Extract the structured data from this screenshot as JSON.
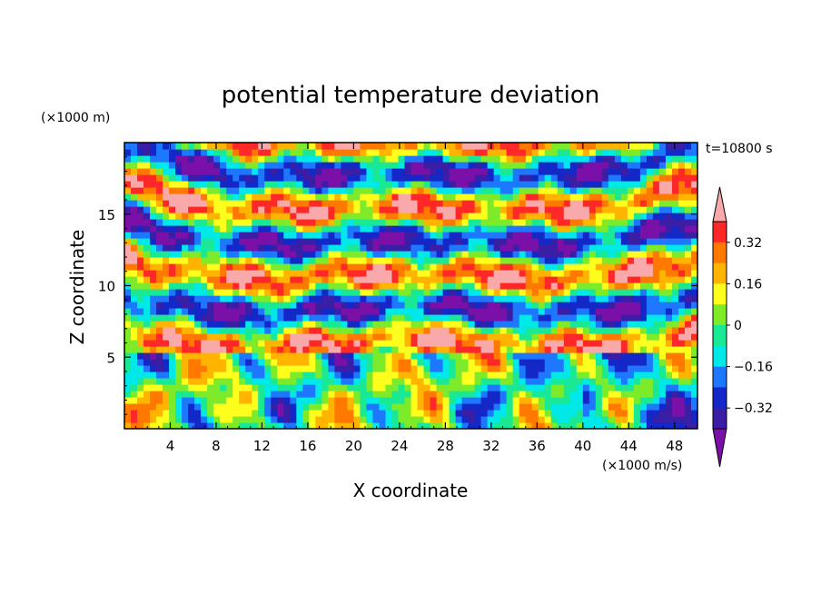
{
  "chart_data": {
    "type": "heatmap",
    "title": "potential temperature deviation",
    "xlabel": "X coordinate",
    "ylabel": "Z coordinate",
    "x_unit": "(×1000 m/s)",
    "y_unit": "(×1000 m)",
    "time_label": "t=10800 s",
    "xlim": [
      0,
      50
    ],
    "ylim": [
      0,
      20
    ],
    "x_ticks": [
      4,
      8,
      12,
      16,
      20,
      24,
      28,
      32,
      36,
      40,
      44,
      48
    ],
    "y_ticks": [
      5,
      10,
      15
    ],
    "colorbar": {
      "levels": [
        -0.4,
        -0.32,
        -0.24,
        -0.16,
        -0.08,
        0,
        0.08,
        0.16,
        0.24,
        0.32,
        0.4
      ],
      "labels": [
        "0.32",
        "0.16",
        "0",
        "−0.16",
        "−0.32"
      ],
      "label_values": [
        0.32,
        0.16,
        0,
        -0.16,
        -0.32
      ],
      "colors": [
        "#7a10a8",
        "#3a1ea6",
        "#1428c8",
        "#1e78ff",
        "#00e8e8",
        "#19e895",
        "#7dea2a",
        "#ffff1e",
        "#ffb400",
        "#ff7800",
        "#ff2828",
        "#f9a9a9"
      ],
      "extend": "both"
    },
    "grid": false
  }
}
